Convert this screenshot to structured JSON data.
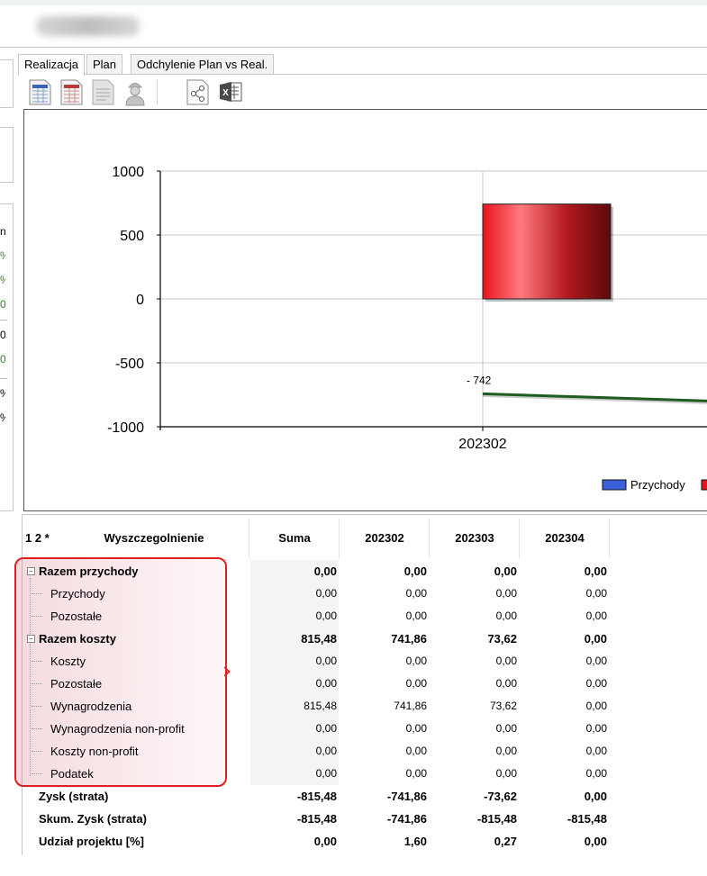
{
  "tabs": [
    {
      "label": "Realizacja",
      "active": true
    },
    {
      "label": "Plan",
      "active": false
    },
    {
      "label": "Odchylenie Plan vs Real.",
      "active": false
    }
  ],
  "toolbar": {
    "icons": [
      "report-table-icon",
      "report-table-red-icon",
      "document-gray-icon",
      "worker-icon",
      "share-icon",
      "excel-export-icon"
    ]
  },
  "left_panel": {
    "fragments": [
      "n",
      "%",
      "%",
      "0",
      "0",
      "0",
      "%",
      "%"
    ],
    "fragment_colors": [
      "#000000",
      "#2a8a2a",
      "#2a8a2a",
      "#2a8a2a",
      "#000000",
      "#2a8a2a",
      "#000000",
      "#000000"
    ]
  },
  "chart_data": {
    "type": "bar",
    "categories": [
      "202302"
    ],
    "y_ticks": [
      "1000",
      "500",
      "0",
      "-500",
      "-1000"
    ],
    "ylim": [
      -1000,
      1000
    ],
    "series": [
      {
        "name": "Przychody",
        "kind": "bar",
        "color": "#3b5fd9",
        "values": [
          0
        ]
      },
      {
        "name": "",
        "kind": "bar",
        "color": "#e8141e",
        "values": [
          741.86
        ]
      },
      {
        "name": "",
        "kind": "line",
        "color": "#1f5c1f",
        "values": [
          -742
        ]
      }
    ],
    "data_label": "-  742",
    "legend": {
      "position": "bottom-right",
      "entries": [
        "Przychody"
      ]
    }
  },
  "grid": {
    "header": {
      "markers": "1 2 *",
      "label": "Wyszczegolnienie",
      "columns": [
        "Suma",
        "202302",
        "202303",
        "202304"
      ]
    },
    "rows": [
      {
        "label": "Razem przychody",
        "level": 0,
        "bold": true,
        "values": [
          "0,00",
          "0,00",
          "0,00",
          "0,00"
        ]
      },
      {
        "label": "Przychody",
        "level": 1,
        "bold": false,
        "values": [
          "0,00",
          "0,00",
          "0,00",
          "0,00"
        ]
      },
      {
        "label": "Pozostałe",
        "level": 1,
        "bold": false,
        "values": [
          "0,00",
          "0,00",
          "0,00",
          "0,00"
        ]
      },
      {
        "label": "Razem koszty",
        "level": 0,
        "bold": true,
        "values": [
          "815,48",
          "741,86",
          "73,62",
          "0,00"
        ]
      },
      {
        "label": "Koszty",
        "level": 1,
        "bold": false,
        "values": [
          "0,00",
          "0,00",
          "0,00",
          "0,00"
        ]
      },
      {
        "label": "Pozostałe",
        "level": 1,
        "bold": false,
        "values": [
          "0,00",
          "0,00",
          "0,00",
          "0,00"
        ]
      },
      {
        "label": "Wynagrodzenia",
        "level": 1,
        "bold": false,
        "values": [
          "815,48",
          "741,86",
          "73,62",
          "0,00"
        ]
      },
      {
        "label": "Wynagrodzenia non-profit",
        "level": 1,
        "bold": false,
        "values": [
          "0,00",
          "0,00",
          "0,00",
          "0,00"
        ]
      },
      {
        "label": "Koszty non-profit",
        "level": 1,
        "bold": false,
        "values": [
          "0,00",
          "0,00",
          "0,00",
          "0,00"
        ]
      },
      {
        "label": "Podatek",
        "level": 1,
        "bold": false,
        "values": [
          "0,00",
          "0,00",
          "0,00",
          "0,00"
        ]
      },
      {
        "label": "Zysk (strata)",
        "level": 2,
        "bold": true,
        "values": [
          "-815,48",
          "-741,86",
          "-73,62",
          "0,00"
        ]
      },
      {
        "label": "Skum. Zysk (strata)",
        "level": 2,
        "bold": true,
        "values": [
          "-815,48",
          "-741,86",
          "-815,48",
          "-815,48"
        ]
      },
      {
        "label": "Udział projektu [%]",
        "level": 2,
        "bold": true,
        "values": [
          "0,00",
          "1,60",
          "0,27",
          "0,00"
        ]
      }
    ]
  }
}
